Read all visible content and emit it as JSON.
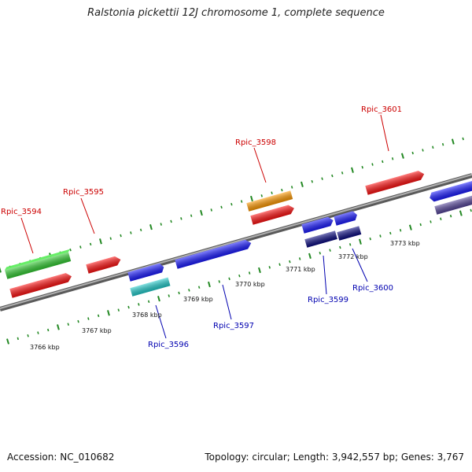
{
  "title": "Ralstonia pickettii 12J chromosome 1, complete sequence",
  "footer": {
    "accession": "Accession: NC_010682",
    "summary": "Topology: circular; Length: 3,942,557 bp; Genes: 3,767"
  },
  "colors": {
    "red": "#ff1111",
    "green": "#33cc33",
    "orange": "#ff9900",
    "blue": "#1a1aff",
    "cyan": "#22cccc",
    "navy": "#0a0a80",
    "slate": "#554499",
    "tick": "#228822",
    "backbone": "#888888"
  },
  "scale_ticks": [
    "3766 kbp",
    "3767 kbp",
    "3768 kbp",
    "3769 kbp",
    "3770 kbp",
    "3771 kbp",
    "3772 kbp",
    "3773 kbp"
  ],
  "gene_labels_top": [
    "Rpic_3594",
    "Rpic_3595",
    "Rpic_3598",
    "Rpic_3601"
  ],
  "gene_labels_bottom": [
    "Rpic_3596",
    "Rpic_3597",
    "Rpic_3599",
    "Rpic_3600"
  ]
}
